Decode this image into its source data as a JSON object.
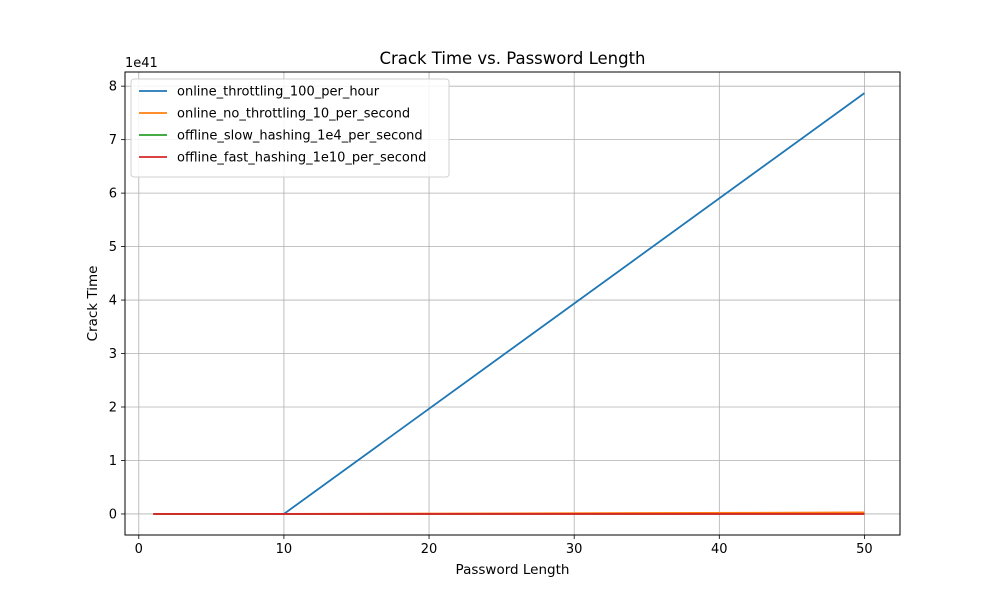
{
  "chart_data": {
    "type": "line",
    "title": "Crack Time vs. Password Length",
    "xlabel": "Password Length",
    "ylabel": "Crack Time",
    "y_offset_label": "1e41",
    "y_unit_scale": 1e+41,
    "xlim": [
      -0.95,
      52.45
    ],
    "ylim": [
      -0.3936,
      8.265
    ],
    "x_ticks": [
      0,
      10,
      20,
      30,
      40,
      50
    ],
    "y_ticks": [
      0,
      1,
      2,
      3,
      4,
      5,
      6,
      7,
      8
    ],
    "grid": true,
    "legend_position": "top-left",
    "series": [
      {
        "name": "online_throttling_100_per_hour",
        "color": "#1f77b4",
        "x": [
          1,
          10,
          50
        ],
        "y": [
          0,
          0,
          7.87
        ]
      },
      {
        "name": "online_no_throttling_10_per_second",
        "color": "#ff7f0e",
        "x": [
          1,
          10,
          50
        ],
        "y": [
          0,
          0,
          0.028
        ]
      },
      {
        "name": "offline_slow_hashing_1e4_per_second",
        "color": "#2ca02c",
        "x": [
          1,
          10,
          50
        ],
        "y": [
          0,
          0,
          0.0
        ]
      },
      {
        "name": "offline_fast_hashing_1e10_per_second",
        "color": "#d62728",
        "x": [
          1,
          10,
          50
        ],
        "y": [
          0,
          0,
          0.0
        ]
      }
    ]
  }
}
